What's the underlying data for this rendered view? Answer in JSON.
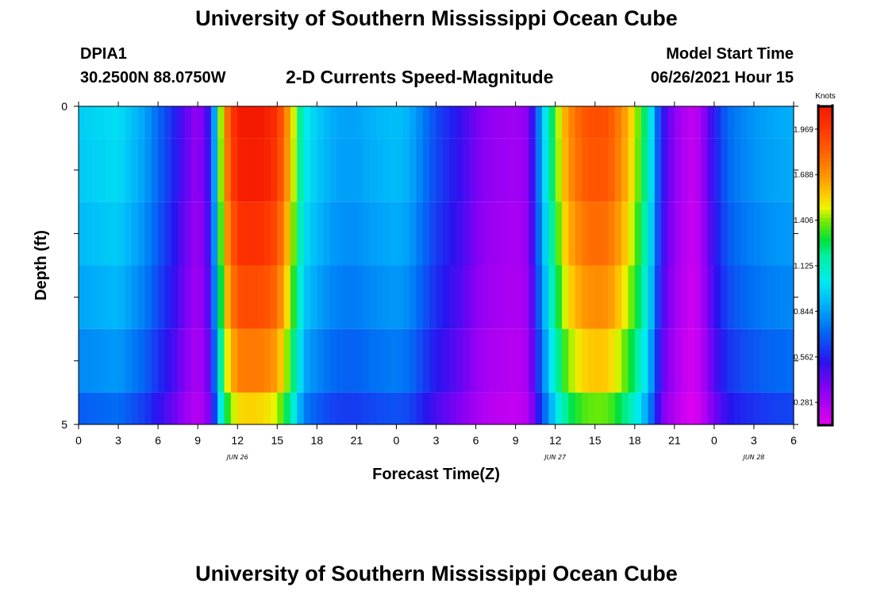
{
  "header": {
    "title_top": "University of Southern Mississippi Ocean Cube",
    "station_id": "DPIA1",
    "coords": "30.2500N  88.0750W",
    "chart_name": "2-D Currents Speed-Magnitude",
    "model_start_label": "Model Start Time",
    "model_start_value": "06/26/2021 Hour 15",
    "title_bottom": "University of Southern Mississippi Ocean Cube"
  },
  "chart_data": {
    "type": "heatmap",
    "title": "2-D Currents Speed-Magnitude",
    "xlabel": "Forecast Time(Z)",
    "ylabel": "Depth (ft)",
    "xlim": [
      0,
      54
    ],
    "ylim": [
      0,
      5
    ],
    "x_tick_values": [
      0,
      3,
      6,
      9,
      12,
      15,
      18,
      21,
      24,
      27,
      30,
      33,
      36,
      39,
      42,
      45,
      48,
      51,
      54
    ],
    "x_tick_labels": [
      "0",
      "3",
      "6",
      "9",
      "12",
      "15",
      "18",
      "21",
      "0",
      "3",
      "6",
      "9",
      "12",
      "15",
      "18",
      "21",
      "0",
      "3",
      "6"
    ],
    "date_labels": [
      {
        "x": 12,
        "text": "JUN 26"
      },
      {
        "x": 36,
        "text": "JUN 27"
      },
      {
        "x": 51,
        "text": "JUN 28"
      }
    ],
    "y_tick_values": [
      0,
      5
    ],
    "y_tick_labels": [
      "0",
      "5"
    ],
    "colorbar": {
      "title": "Knots",
      "min": 0.14,
      "max": 2.11,
      "tick_values": [
        1.969,
        1.688,
        1.406,
        1.125,
        0.844,
        0.562,
        0.281
      ],
      "tick_labels": [
        "1.969",
        "1.688",
        "1.406",
        "1.125",
        "0.844",
        "0.562",
        "0.281"
      ]
    },
    "depth_rows": [
      {
        "top": 0.0,
        "bottom": 0.5,
        "factor": 1.0
      },
      {
        "top": 0.5,
        "bottom": 1.5,
        "factor": 0.99
      },
      {
        "top": 1.5,
        "bottom": 2.5,
        "factor": 0.95
      },
      {
        "top": 2.5,
        "bottom": 3.5,
        "factor": 0.9
      },
      {
        "top": 3.5,
        "bottom": 4.5,
        "factor": 0.83
      },
      {
        "top": 4.5,
        "bottom": 5.0,
        "factor": 0.73
      }
    ],
    "surface_speed": {
      "hours": [
        0,
        3,
        5,
        6,
        7,
        8,
        9,
        10,
        10.5,
        11,
        12,
        13,
        14,
        15,
        16,
        17,
        18,
        19,
        20,
        21,
        22,
        23,
        24,
        25,
        27,
        29,
        30,
        31,
        33,
        34,
        35,
        36,
        36.5,
        37,
        38,
        39,
        40,
        41,
        42,
        43,
        43.5,
        44,
        45,
        46,
        46.5,
        47,
        48,
        49,
        50,
        51,
        52,
        54
      ],
      "values": [
        0.95,
        1.0,
        0.85,
        0.72,
        0.6,
        0.45,
        0.32,
        0.55,
        1.15,
        1.7,
        2.1,
        2.12,
        2.1,
        2.0,
        1.6,
        1.05,
        0.95,
        0.88,
        0.85,
        0.85,
        0.88,
        0.9,
        0.92,
        0.88,
        0.65,
        0.5,
        0.4,
        0.34,
        0.3,
        0.36,
        0.9,
        1.35,
        1.55,
        1.7,
        1.85,
        1.9,
        1.88,
        1.72,
        1.48,
        1.15,
        0.85,
        0.55,
        0.35,
        0.24,
        0.22,
        0.3,
        0.55,
        0.72,
        0.78,
        0.82,
        0.85,
        0.88
      ]
    }
  }
}
